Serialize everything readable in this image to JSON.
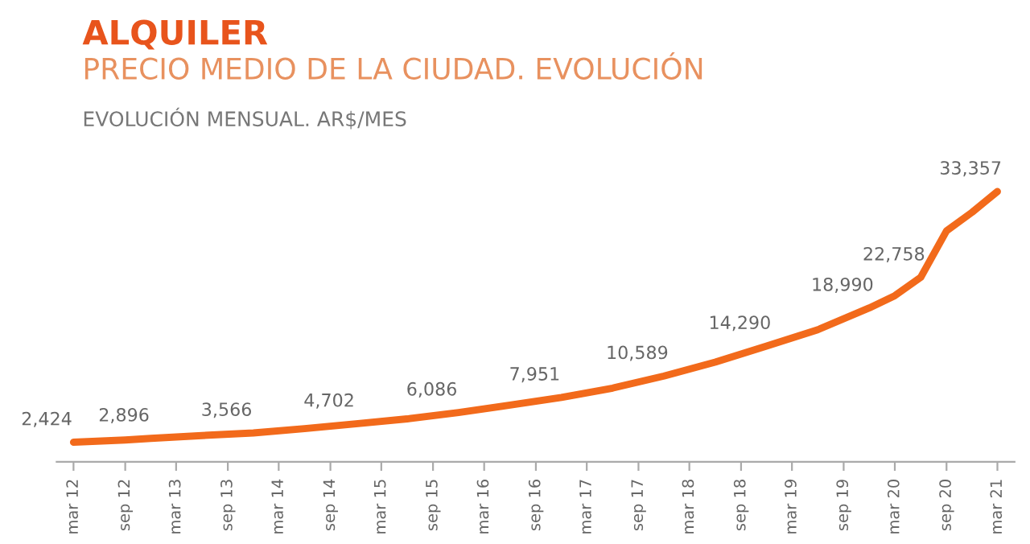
{
  "chart_data": {
    "type": "line",
    "title": "ALQUILER",
    "subtitle": "PRECIO MEDIO DE LA CIUDAD. EVOLUCIÓN",
    "annotations": [
      "EVOLUCIÓN MENSUAL. AR$/MES"
    ],
    "series": [
      {
        "color": "#f26a1b",
        "x": [
          "2012-03",
          "2012-09",
          "2012-12",
          "2013-06",
          "2013-12",
          "2014-06",
          "2014-12",
          "2015-06",
          "2015-12",
          "2016-06",
          "2016-12",
          "2017-06",
          "2017-12",
          "2018-06",
          "2018-12",
          "2019-06",
          "2019-12",
          "2020-03",
          "2020-06",
          "2020-09",
          "2020-12",
          "2021-03"
        ],
        "values": [
          2424,
          2700,
          2896,
          3250,
          3566,
          4100,
          4702,
          5300,
          6086,
          7000,
          7951,
          9100,
          10589,
          12300,
          14290,
          16300,
          18990,
          20500,
          22758,
          28500,
          30800,
          33357
        ],
        "value_labels": [
          "2,424",
          null,
          "2,896",
          null,
          "3,566",
          null,
          "4,702",
          null,
          "6,086",
          null,
          "7,951",
          null,
          "10,589",
          null,
          "14,290",
          null,
          "18,990",
          null,
          "22,758",
          null,
          null,
          "33,357"
        ]
      }
    ],
    "xlim": [
      "2012-01",
      "2021-05"
    ],
    "xticks": [
      {
        "value": "2012-03",
        "label": "mar 12"
      },
      {
        "value": "2012-09",
        "label": "sep 12"
      },
      {
        "value": "2013-03",
        "label": "mar 13"
      },
      {
        "value": "2013-09",
        "label": "sep 13"
      },
      {
        "value": "2014-03",
        "label": "mar 14"
      },
      {
        "value": "2014-09",
        "label": "sep 14"
      },
      {
        "value": "2015-03",
        "label": "mar 15"
      },
      {
        "value": "2015-09",
        "label": "sep 15"
      },
      {
        "value": "2016-03",
        "label": "mar 16"
      },
      {
        "value": "2016-09",
        "label": "sep 16"
      },
      {
        "value": "2017-03",
        "label": "mar 17"
      },
      {
        "value": "2017-09",
        "label": "sep 17"
      },
      {
        "value": "2018-03",
        "label": "mar 18"
      },
      {
        "value": "2018-09",
        "label": "sep 18"
      },
      {
        "value": "2019-03",
        "label": "mar 19"
      },
      {
        "value": "2019-09",
        "label": "sep 19"
      },
      {
        "value": "2020-03",
        "label": "mar 20"
      },
      {
        "value": "2020-09",
        "label": "sep 20"
      },
      {
        "value": "2021-03",
        "label": "mar 21"
      }
    ],
    "tick_labels": "x",
    "grid": false,
    "legend": false,
    "marker": "none",
    "line_style": "solid"
  }
}
